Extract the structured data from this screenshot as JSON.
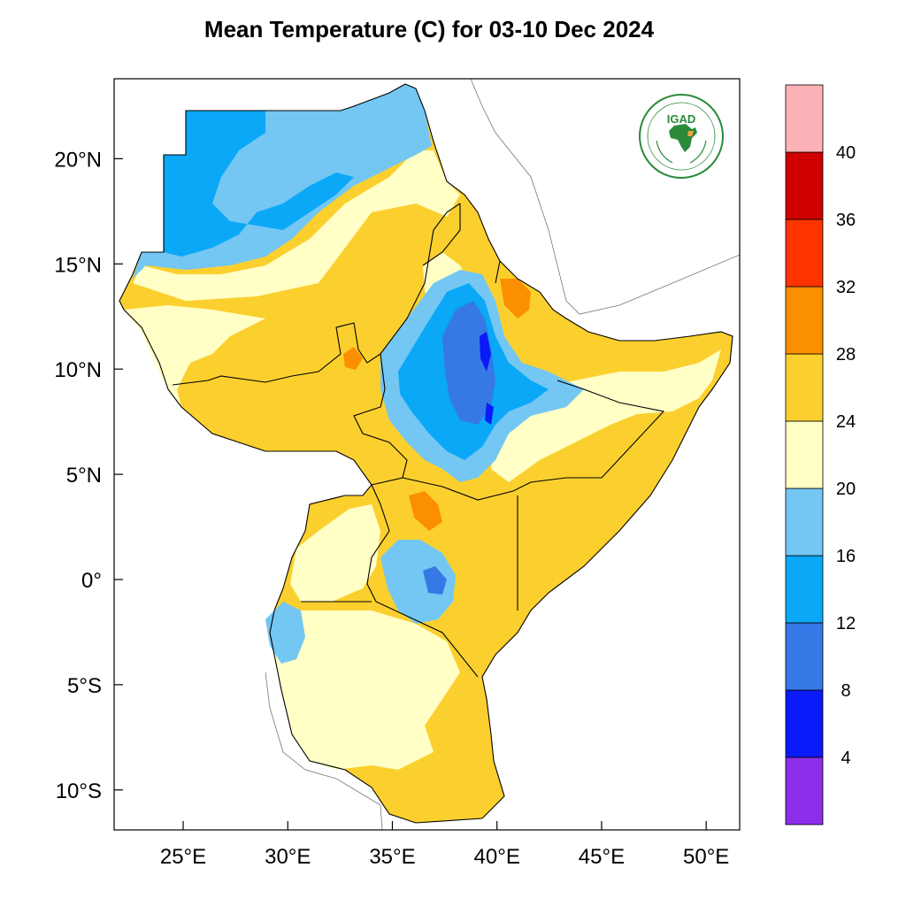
{
  "title": "Mean Temperature (C) for 03-10 Dec 2024",
  "map": {
    "lon_range": [
      21.7,
      51.6
    ],
    "lat_range": [
      -11.9,
      23.8
    ],
    "x_ticks": [
      {
        "lon": 25,
        "label": "25°E"
      },
      {
        "lon": 30,
        "label": "30°E"
      },
      {
        "lon": 35,
        "label": "35°E"
      },
      {
        "lon": 40,
        "label": "40°E"
      },
      {
        "lon": 45,
        "label": "45°E"
      },
      {
        "lon": 50,
        "label": "50°E"
      }
    ],
    "y_ticks": [
      {
        "lat": 20,
        "label": "20°N"
      },
      {
        "lat": 15,
        "label": "15°N"
      },
      {
        "lat": 10,
        "label": "10°N"
      },
      {
        "lat": 5,
        "label": "5°N"
      },
      {
        "lat": 0,
        "label": "0°"
      },
      {
        "lat": -5,
        "label": "5°S"
      },
      {
        "lat": -10,
        "label": "10°S"
      }
    ]
  },
  "colorbar": {
    "bins": [
      {
        "color": "#8c2eea"
      },
      {
        "color": "#0b1af9"
      },
      {
        "color": "#3578e6"
      },
      {
        "color": "#0aa8f7"
      },
      {
        "color": "#73c7f2"
      },
      {
        "color": "#ffffc6"
      },
      {
        "color": "#fbd02e"
      },
      {
        "color": "#fc8f00"
      },
      {
        "color": "#fd3300"
      },
      {
        "color": "#cf0000"
      },
      {
        "color": "#fdb2b7"
      }
    ],
    "labels": [
      "4",
      "8",
      "12",
      "16",
      "20",
      "24",
      "28",
      "32",
      "36",
      "40"
    ]
  },
  "logo": {
    "text": "IGAD",
    "ring_text": "INTERGOVERNMENTAL AUTHORITY ON DEVELOPMENT",
    "color": "#2a8a3a"
  }
}
